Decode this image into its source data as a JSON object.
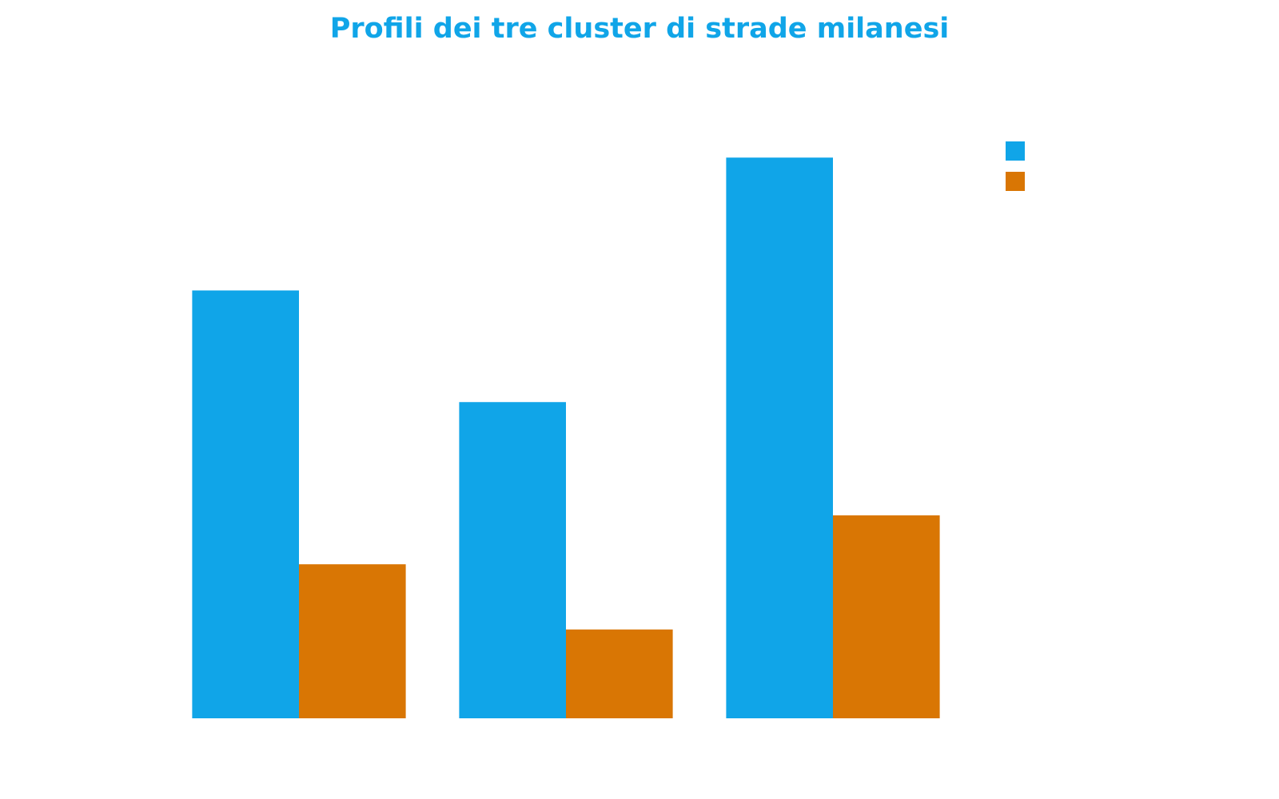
{
  "chart_data": {
    "type": "bar",
    "title": "Profili dei tre cluster di strade milanesi",
    "categories": [
      null,
      null,
      null
    ],
    "series": [
      {
        "color": "#10a5e8",
        "values": [
          5.25,
          3.88,
          6.88
        ]
      },
      {
        "color": "#d97604",
        "values": [
          1.89,
          1.09,
          2.49
        ]
      }
    ],
    "ylim": [
      0,
      8
    ],
    "legend": "upper right"
  }
}
